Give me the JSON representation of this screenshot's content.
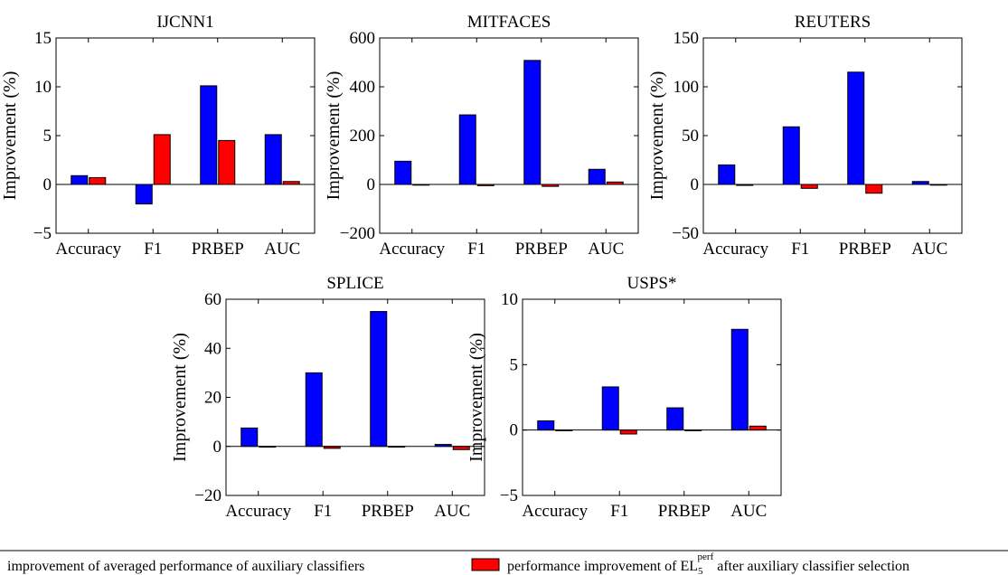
{
  "legend": {
    "items": [
      {
        "label": "improvement of averaged performance of auxiliary classifiers",
        "color": "#0000ff"
      },
      {
        "label_prefix": "performance improvement of EL",
        "label_sub": "5",
        "label_sup": "perf",
        "label_suffix": " after auxiliary classifier selection",
        "color": "#ff0000"
      }
    ]
  },
  "colors": {
    "series1": "#0000ff",
    "series2": "#ff0000",
    "axis": "#000000"
  },
  "chart_data": [
    {
      "type": "bar",
      "title": "IJCNN1",
      "ylabel": "Improvement (%)",
      "categories": [
        "Accuracy",
        "F1",
        "PRBEP",
        "AUC"
      ],
      "ylim": [
        -5,
        15
      ],
      "yticks": [
        -5,
        0,
        5,
        10,
        15
      ],
      "series": [
        {
          "values": [
            0.9,
            -2.0,
            10.1,
            5.1
          ]
        },
        {
          "values": [
            0.7,
            5.1,
            4.5,
            0.3
          ]
        }
      ]
    },
    {
      "type": "bar",
      "title": "MITFACES",
      "ylabel": "Improvement (%)",
      "categories": [
        "Accuracy",
        "F1",
        "PRBEP",
        "AUC"
      ],
      "ylim": [
        -200,
        600
      ],
      "yticks": [
        -200,
        0,
        200,
        400,
        600
      ],
      "series": [
        {
          "values": [
            95,
            285,
            508,
            62
          ]
        },
        {
          "values": [
            -2,
            -5,
            -8,
            10
          ]
        }
      ]
    },
    {
      "type": "bar",
      "title": "REUTERS",
      "ylabel": "Improvement (%)",
      "categories": [
        "Accuracy",
        "F1",
        "PRBEP",
        "AUC"
      ],
      "ylim": [
        -50,
        150
      ],
      "yticks": [
        -50,
        0,
        50,
        100,
        150
      ],
      "series": [
        {
          "values": [
            20,
            59,
            115,
            3
          ]
        },
        {
          "values": [
            -1,
            -4,
            -9,
            -0.5
          ]
        }
      ]
    },
    {
      "type": "bar",
      "title": "SPLICE",
      "ylabel": "Improvement (%)",
      "categories": [
        "Accuracy",
        "F1",
        "PRBEP",
        "AUC"
      ],
      "ylim": [
        -20,
        60
      ],
      "yticks": [
        -20,
        0,
        20,
        40,
        60
      ],
      "series": [
        {
          "values": [
            7.5,
            30,
            55,
            0.8
          ]
        },
        {
          "values": [
            -0.3,
            -0.8,
            -0.2,
            -1.3
          ]
        }
      ]
    },
    {
      "type": "bar",
      "title": "USPS*",
      "ylabel": "Improvement (%)",
      "categories": [
        "Accuracy",
        "F1",
        "PRBEP",
        "AUC"
      ],
      "ylim": [
        -5,
        10
      ],
      "yticks": [
        -5,
        0,
        5,
        10
      ],
      "series": [
        {
          "values": [
            0.7,
            3.3,
            1.7,
            7.7
          ]
        },
        {
          "values": [
            -0.05,
            -0.3,
            -0.05,
            0.3
          ]
        }
      ]
    }
  ]
}
